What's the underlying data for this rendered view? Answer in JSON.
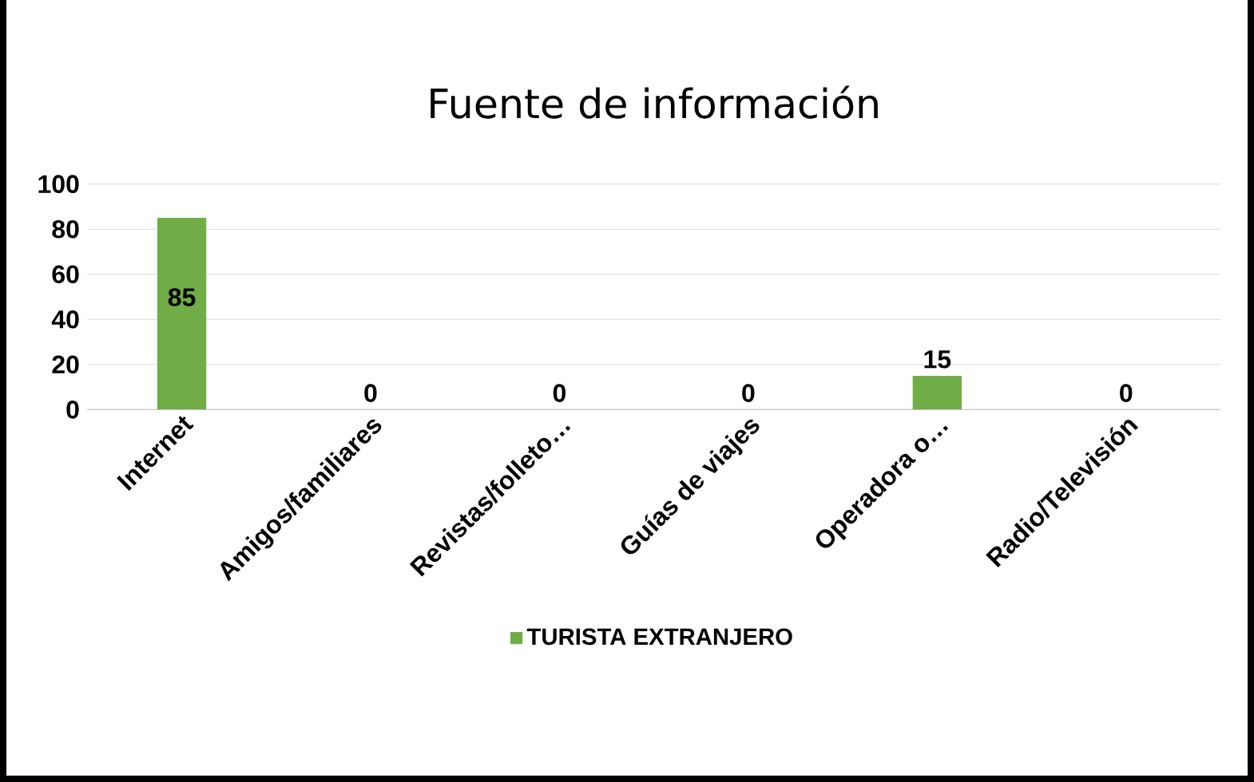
{
  "chart_data": {
    "type": "bar",
    "title": "Fuente de información",
    "categories": [
      "Internet",
      "Amigos/familiares",
      "Revistas/folleto…",
      "Guías de viajes",
      "Operadora o…",
      "Radio/Televisión"
    ],
    "series": [
      {
        "name": "TURISTA EXTRANJERO",
        "color": "#70ad47",
        "values": [
          85,
          0,
          0,
          0,
          15,
          0
        ]
      }
    ],
    "ylim": [
      0,
      100
    ],
    "yticks": [
      0,
      20,
      40,
      60,
      80,
      100
    ],
    "grid": "y",
    "data_labels": true,
    "legend": "bottom"
  }
}
